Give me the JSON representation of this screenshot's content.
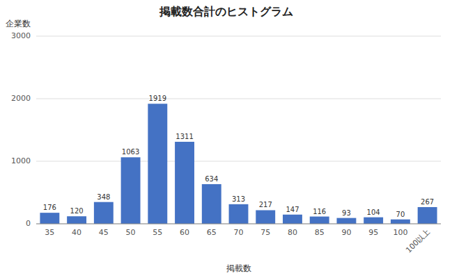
{
  "chart_data": {
    "type": "bar",
    "title": "掲載数合計のヒストグラム",
    "xlabel": "掲載数",
    "ylabel": "企業数",
    "categories": [
      "35",
      "40",
      "45",
      "50",
      "55",
      "60",
      "65",
      "70",
      "75",
      "80",
      "85",
      "90",
      "95",
      "100",
      "100以上"
    ],
    "values": [
      176,
      120,
      348,
      1063,
      1919,
      1311,
      634,
      313,
      217,
      147,
      116,
      93,
      104,
      70,
      267
    ],
    "color": "#4472C4",
    "ylim": [
      0,
      3000
    ],
    "yticks": [
      0,
      1000,
      2000,
      3000
    ],
    "grid": true,
    "data_labels": true
  }
}
